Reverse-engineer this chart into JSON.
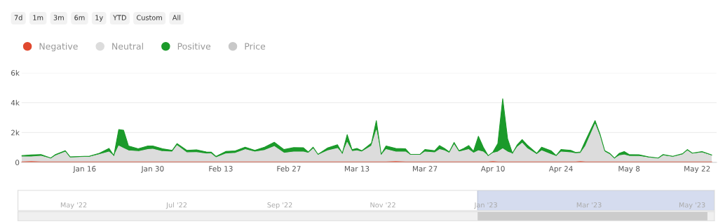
{
  "chart_data": {
    "type": "area",
    "stacked": true,
    "x": [
      "2023-01-03",
      "2023-01-05",
      "2023-01-07",
      "2023-01-09",
      "2023-01-10",
      "2023-01-12",
      "2023-01-13",
      "2023-01-15",
      "2023-01-17",
      "2023-01-19",
      "2023-01-21",
      "2023-01-22",
      "2023-01-23",
      "2023-01-24",
      "2023-01-25",
      "2023-01-27",
      "2023-01-29",
      "2023-01-30",
      "2023-02-01",
      "2023-02-03",
      "2023-02-04",
      "2023-02-06",
      "2023-02-08",
      "2023-02-10",
      "2023-02-11",
      "2023-02-12",
      "2023-02-14",
      "2023-02-16",
      "2023-02-18",
      "2023-02-20",
      "2023-02-22",
      "2023-02-24",
      "2023-02-26",
      "2023-02-28",
      "2023-03-02",
      "2023-03-03",
      "2023-03-04",
      "2023-03-05",
      "2023-03-07",
      "2023-03-09",
      "2023-03-10",
      "2023-03-11",
      "2023-03-12",
      "2023-03-13",
      "2023-03-14",
      "2023-03-16",
      "2023-03-17",
      "2023-03-18",
      "2023-03-19",
      "2023-03-21",
      "2023-03-23",
      "2023-03-24",
      "2023-03-26",
      "2023-03-27",
      "2023-03-29",
      "2023-03-30",
      "2023-03-31",
      "2023-04-01",
      "2023-04-02",
      "2023-04-03",
      "2023-04-04",
      "2023-04-05",
      "2023-04-06",
      "2023-04-07",
      "2023-04-08",
      "2023-04-09",
      "2023-04-10",
      "2023-04-11",
      "2023-04-12",
      "2023-04-13",
      "2023-04-14",
      "2023-04-15",
      "2023-04-16",
      "2023-04-17",
      "2023-04-19",
      "2023-04-20",
      "2023-04-22",
      "2023-04-23",
      "2023-04-24",
      "2023-04-26",
      "2023-04-27",
      "2023-04-28",
      "2023-04-29",
      "2023-05-01",
      "2023-05-02",
      "2023-05-03",
      "2023-05-04",
      "2023-05-05",
      "2023-05-06",
      "2023-05-07",
      "2023-05-08",
      "2023-05-10",
      "2023-05-12",
      "2023-05-14",
      "2023-05-15",
      "2023-05-17",
      "2023-05-19",
      "2023-05-20",
      "2023-05-21",
      "2023-05-23",
      "2023-05-25"
    ],
    "series": [
      {
        "name": "Negative",
        "color": "#e0492f",
        "values": [
          30,
          60,
          30,
          30,
          30,
          30,
          30,
          30,
          30,
          30,
          30,
          30,
          30,
          30,
          30,
          30,
          30,
          30,
          30,
          30,
          30,
          30,
          30,
          30,
          30,
          30,
          30,
          30,
          30,
          30,
          30,
          30,
          30,
          30,
          30,
          30,
          30,
          30,
          30,
          30,
          30,
          30,
          30,
          30,
          30,
          30,
          30,
          30,
          30,
          60,
          30,
          30,
          30,
          30,
          30,
          30,
          30,
          30,
          30,
          30,
          30,
          30,
          30,
          30,
          30,
          30,
          60,
          30,
          30,
          30,
          30,
          30,
          30,
          30,
          30,
          30,
          30,
          30,
          30,
          30,
          30,
          60,
          30,
          30,
          30,
          30,
          30,
          30,
          30,
          30,
          30,
          30,
          30,
          30,
          30,
          30,
          30,
          30,
          30,
          30,
          30
        ]
      },
      {
        "name": "Neutral",
        "color": "#dcdcdc",
        "values": [
          340,
          310,
          390,
          230,
          420,
          670,
          290,
          310,
          330,
          500,
          670,
          380,
          1070,
          910,
          750,
          700,
          830,
          860,
          700,
          670,
          1100,
          620,
          630,
          540,
          550,
          290,
          540,
          590,
          830,
          670,
          780,
          1040,
          590,
          670,
          670,
          590,
          880,
          460,
          750,
          910,
          550,
          1310,
          710,
          750,
          670,
          1070,
          2120,
          460,
          830,
          640,
          670,
          460,
          460,
          670,
          620,
          830,
          750,
          590,
          1150,
          670,
          750,
          830,
          590,
          750,
          670,
          390,
          560,
          670,
          880,
          670,
          550,
          990,
          1260,
          910,
          500,
          750,
          500,
          380,
          670,
          620,
          560,
          560,
          1040,
          2530,
          1720,
          670,
          500,
          230,
          420,
          470,
          390,
          380,
          290,
          230,
          420,
          330,
          500,
          750,
          540,
          620,
          420
        ]
      },
      {
        "name": "Positive",
        "color": "#1b9a2a",
        "values": [
          80,
          130,
          110,
          30,
          80,
          80,
          50,
          60,
          60,
          80,
          240,
          50,
          1100,
          1210,
          320,
          180,
          240,
          210,
          180,
          110,
          130,
          160,
          180,
          130,
          110,
          80,
          160,
          150,
          160,
          110,
          210,
          280,
          240,
          290,
          280,
          80,
          110,
          50,
          190,
          240,
          30,
          520,
          110,
          160,
          80,
          190,
          650,
          50,
          240,
          240,
          210,
          50,
          50,
          160,
          130,
          270,
          160,
          80,
          160,
          80,
          160,
          270,
          130,
          970,
          320,
          30,
          80,
          570,
          3350,
          890,
          30,
          160,
          240,
          240,
          80,
          240,
          240,
          50,
          160,
          160,
          80,
          80,
          360,
          240,
          160,
          80,
          80,
          30,
          160,
          230,
          110,
          100,
          50,
          30,
          80,
          50,
          50,
          80,
          50,
          80,
          50
        ]
      },
      {
        "name": "Price",
        "color": "#c8c8c8",
        "values": [
          null,
          null,
          null,
          null,
          null,
          null,
          null,
          null,
          null,
          null,
          null,
          null,
          null,
          null,
          null,
          null,
          null,
          null,
          null,
          null,
          null,
          null,
          null,
          null,
          null,
          null,
          null,
          null,
          null,
          null,
          null,
          null,
          null,
          null,
          null,
          null,
          null,
          null,
          null,
          null,
          null,
          null,
          null,
          null,
          null,
          null,
          null,
          null,
          null,
          null,
          null,
          null,
          null,
          null,
          null,
          null,
          null,
          null,
          null,
          null,
          null,
          null,
          null,
          null,
          null,
          null,
          null,
          null,
          null,
          null,
          null,
          null,
          null,
          null,
          null,
          null,
          null,
          null,
          null,
          null,
          null,
          null,
          null,
          null,
          null,
          null,
          null,
          null,
          null,
          null,
          null,
          null,
          null,
          null,
          null,
          null,
          null,
          null,
          null,
          null,
          null
        ]
      }
    ],
    "xlim": [
      "2023-01-03",
      "2023-05-26"
    ],
    "xticks": [
      {
        "value": "2023-01-16",
        "label": "Jan 16"
      },
      {
        "value": "2023-01-30",
        "label": "Jan 30"
      },
      {
        "value": "2023-02-13",
        "label": "Feb 13"
      },
      {
        "value": "2023-02-27",
        "label": "Feb 27"
      },
      {
        "value": "2023-03-13",
        "label": "Mar 13"
      },
      {
        "value": "2023-03-27",
        "label": "Mar 27"
      },
      {
        "value": "2023-04-10",
        "label": "Apr 10"
      },
      {
        "value": "2023-04-24",
        "label": "Apr 24"
      },
      {
        "value": "2023-05-08",
        "label": "May 8"
      },
      {
        "value": "2023-05-22",
        "label": "May 22"
      }
    ],
    "ylim": [
      0,
      6000
    ],
    "yticks": [
      0,
      {
        "value": 2000,
        "label": "2k"
      },
      {
        "value": 4000,
        "label": "4k"
      },
      {
        "value": 6000,
        "label": "6k"
      }
    ],
    "grid": "y",
    "legend": "top left",
    "annotations": [
      "7d",
      "1m",
      "3m",
      "6m",
      "1y",
      "YTD",
      "Custom",
      "All",
      "May '22",
      "Jul '22",
      "Sep '22",
      "Nov '22",
      "Jan '23",
      "Mar '23",
      "May '23"
    ]
  }
}
